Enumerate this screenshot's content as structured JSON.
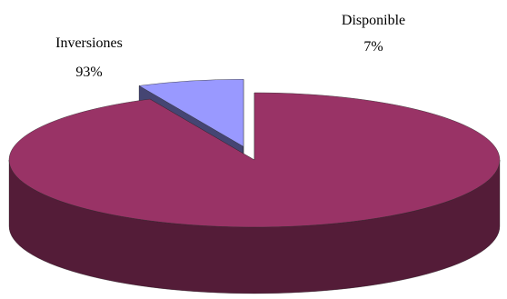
{
  "chart_data": {
    "type": "pie",
    "variant": "3d-exploded",
    "slices": [
      {
        "label": "Inversiones",
        "value": 93,
        "value_label": "93%",
        "color": "#993366",
        "exploded": false
      },
      {
        "label": "Disponible",
        "value": 7,
        "value_label": "7%",
        "color": "#9999FF",
        "exploded": true
      }
    ],
    "title": "",
    "legend": "none",
    "data_labels": "category and percentage"
  }
}
